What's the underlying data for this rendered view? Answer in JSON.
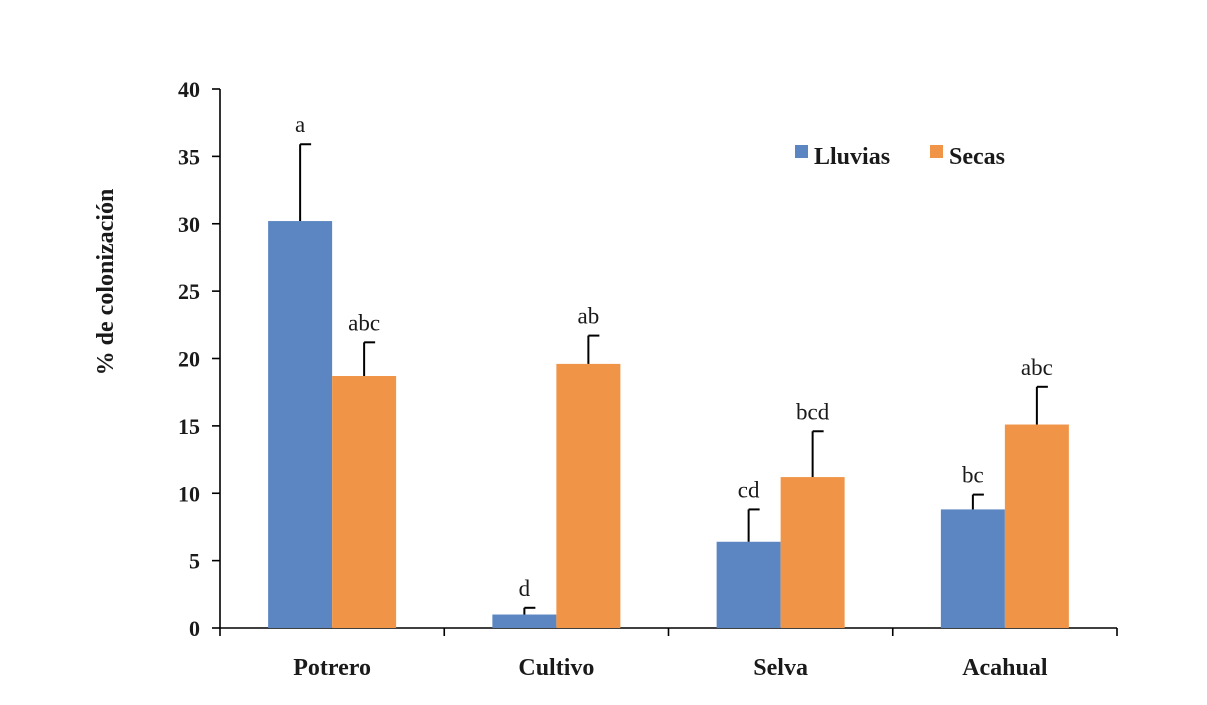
{
  "chart_data": {
    "type": "bar",
    "title": "",
    "xlabel": "",
    "ylabel": "%  de colonización",
    "ylim": [
      0,
      40
    ],
    "yticks": [
      0,
      5,
      10,
      15,
      20,
      25,
      30,
      35,
      40
    ],
    "categories": [
      "Potrero",
      "Cultivo",
      "Selva",
      "Acahual"
    ],
    "series": [
      {
        "name": "Lluvias",
        "color": "#5b86c2",
        "values": [
          30.2,
          1.0,
          6.4,
          8.8
        ],
        "errors": [
          5.7,
          0.5,
          2.4,
          1.1
        ],
        "labels": [
          "a",
          "d",
          "cd",
          "bc"
        ]
      },
      {
        "name": "Secas",
        "color": "#f09548",
        "values": [
          18.7,
          19.6,
          11.2,
          15.1
        ],
        "errors": [
          2.5,
          2.1,
          3.4,
          2.8
        ],
        "labels": [
          "abc",
          "ab",
          "bcd",
          "abc"
        ]
      }
    ],
    "legend": "top-right",
    "grid": false
  }
}
